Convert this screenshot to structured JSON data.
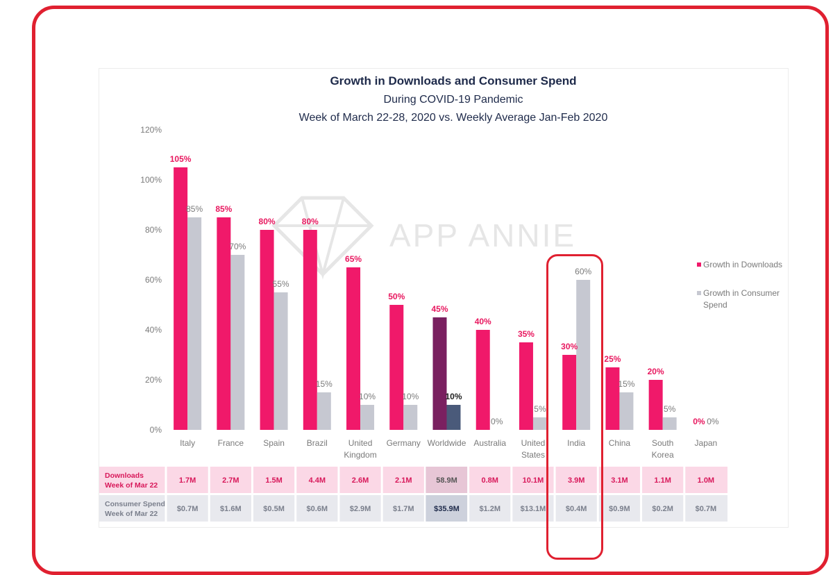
{
  "colors": {
    "downloads": "#f0196a",
    "spend": "#c6c8d1",
    "worldwide_downloads": "#7a2060",
    "worldwide_spend": "#4a5a7a",
    "frame": "#e02030",
    "row_downloads_bg": "#fbd8e6",
    "row_spend_bg": "#e8e9ee",
    "ww_downloads_cell": "#e7c6d6",
    "ww_spend_cell": "#cdd1dc"
  },
  "chart_data": {
    "type": "bar",
    "title": "Growth in Downloads and Consumer Spend",
    "subtitle": "During COVID-19 Pandemic",
    "subtitle2": "Week of March 22-28, 2020 vs. Weekly Average Jan-Feb 2020",
    "categories": [
      "Italy",
      "France",
      "Spain",
      "Brazil",
      "United Kingdom",
      "Germany",
      "Worldwide",
      "Australia",
      "United States",
      "India",
      "China",
      "South Korea",
      "Japan"
    ],
    "category_lines": [
      [
        "Italy"
      ],
      [
        "France"
      ],
      [
        "Spain"
      ],
      [
        "Brazil"
      ],
      [
        "United",
        "Kingdom"
      ],
      [
        "Germany"
      ],
      [
        "Worldwide"
      ],
      [
        "Australia"
      ],
      [
        "United",
        "States"
      ],
      [
        "India"
      ],
      [
        "China"
      ],
      [
        "South",
        "Korea"
      ],
      [
        "Japan"
      ]
    ],
    "series": [
      {
        "name": "Growth in Downloads",
        "values": [
          105,
          85,
          80,
          80,
          65,
          50,
          45,
          40,
          35,
          30,
          25,
          20,
          0
        ]
      },
      {
        "name": "Growth in Consumer Spend",
        "values": [
          85,
          70,
          55,
          15,
          10,
          10,
          10,
          0,
          5,
          60,
          15,
          5,
          0
        ]
      }
    ],
    "data_labels": {
      "downloads": [
        "105%",
        "85%",
        "80%",
        "80%",
        "65%",
        "50%",
        "45%",
        "40%",
        "35%",
        "30%",
        "25%",
        "20%",
        "0%"
      ],
      "spend": [
        "85%",
        "70%",
        "55%",
        "15%",
        "10%",
        "10%",
        "10%",
        "0%",
        "5%",
        "60%",
        "15%",
        "5%",
        "0%"
      ]
    },
    "yticks": [
      "0%",
      "20%",
      "40%",
      "60%",
      "80%",
      "100%",
      "120%"
    ],
    "ylim": [
      0,
      120
    ],
    "legend": {
      "position": "right",
      "downloads": "Growth in Downloads",
      "spend_line1": "Growth in Consumer",
      "spend_line2": "Spend"
    },
    "watermark": "APP ANNIE",
    "highlighted_category": "India",
    "table": {
      "downloads_label": [
        "Downloads",
        "Week of Mar 22"
      ],
      "spend_label": [
        "Consumer Spend",
        "Week of Mar 22"
      ],
      "downloads": [
        "1.7M",
        "2.7M",
        "1.5M",
        "4.4M",
        "2.6M",
        "2.1M",
        "58.9M",
        "0.8M",
        "10.1M",
        "3.9M",
        "3.1M",
        "1.1M",
        "1.0M"
      ],
      "spend": [
        "$0.7M",
        "$1.6M",
        "$0.5M",
        "$0.6M",
        "$2.9M",
        "$1.7M",
        "$35.9M",
        "$1.2M",
        "$13.1M",
        "$0.4M",
        "$0.9M",
        "$0.2M",
        "$0.7M"
      ]
    }
  }
}
